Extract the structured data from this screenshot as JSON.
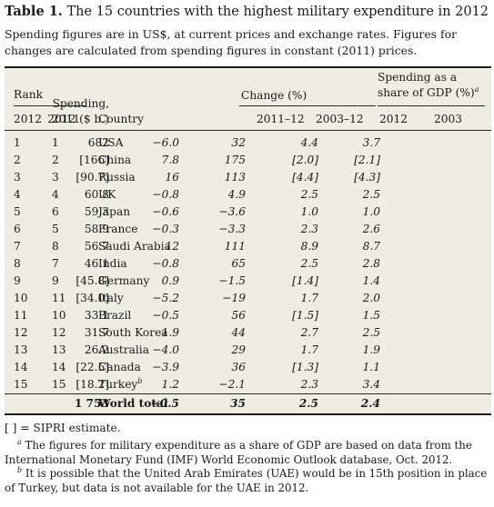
{
  "title": {
    "label": "Table 1.",
    "text": "The 15 countries with the highest military expenditure in 2012"
  },
  "subtitle": "Spending figures are in US$, at current prices and exchange rates. Figures for changes are calculated from spending figures in constant (2011) prices.",
  "headers": {
    "rank": "Rank",
    "year_2012": "2012",
    "year_2011": "2011",
    "country": "Country",
    "spending_line1": "Spending,",
    "spending_line2": "2012 ($ b.)",
    "change": "Change (%)",
    "change_2011_12": "2011–12",
    "change_2003_12": "2003–12",
    "gdp_line1": "Spending as a",
    "gdp_line2": "share of GDP (%)",
    "gdp_note": "a",
    "gdp_2012": "2012",
    "gdp_2003": "2003"
  },
  "rows": [
    {
      "rank_2012": "1",
      "rank_2011": "1",
      "country": "USA",
      "note": "",
      "spending": "682",
      "change_1yr": "−6.0",
      "change_9yr": "32",
      "gdp_2012": "4.4",
      "gdp_2003": "3.7"
    },
    {
      "rank_2012": "2",
      "rank_2011": "2",
      "country": "China",
      "note": "",
      "spending": "[166]",
      "change_1yr": "7.8",
      "change_9yr": "175",
      "gdp_2012": "[2.0]",
      "gdp_2003": "[2.1]"
    },
    {
      "rank_2012": "3",
      "rank_2011": "3",
      "country": "Russia",
      "note": "",
      "spending": "[90.7]",
      "change_1yr": "16",
      "change_9yr": "113",
      "gdp_2012": "[4.4]",
      "gdp_2003": "[4.3]"
    },
    {
      "rank_2012": "4",
      "rank_2011": "4",
      "country": "UK",
      "note": "",
      "spending": "60.8",
      "change_1yr": "−0.8",
      "change_9yr": "4.9",
      "gdp_2012": "2.5",
      "gdp_2003": "2.5"
    },
    {
      "rank_2012": "5",
      "rank_2011": "6",
      "country": "Japan",
      "note": "",
      "spending": "59.3",
      "change_1yr": "−0.6",
      "change_9yr": "−3.6",
      "gdp_2012": "1.0",
      "gdp_2003": "1.0"
    },
    {
      "rank_2012": "6",
      "rank_2011": "5",
      "country": "France",
      "note": "",
      "spending": "58.9",
      "change_1yr": "−0.3",
      "change_9yr": "−3.3",
      "gdp_2012": "2.3",
      "gdp_2003": "2.6"
    },
    {
      "rank_2012": "7",
      "rank_2011": "8",
      "country": "Saudi Arabia",
      "note": "",
      "spending": "56.7",
      "change_1yr": "12",
      "change_9yr": "111",
      "gdp_2012": "8.9",
      "gdp_2003": "8.7"
    },
    {
      "rank_2012": "8",
      "rank_2011": "7",
      "country": "India",
      "note": "",
      "spending": "46.1",
      "change_1yr": "−0.8",
      "change_9yr": "65",
      "gdp_2012": "2.5",
      "gdp_2003": "2.8"
    },
    {
      "rank_2012": "9",
      "rank_2011": "9",
      "country": "Germany",
      "note": "",
      "spending": "[45.8]",
      "change_1yr": "0.9",
      "change_9yr": "−1.5",
      "gdp_2012": "[1.4]",
      "gdp_2003": "1.4"
    },
    {
      "rank_2012": "10",
      "rank_2011": "11",
      "country": "Italy",
      "note": "",
      "spending": "[34.0]",
      "change_1yr": "−5.2",
      "change_9yr": "−19",
      "gdp_2012": "1.7",
      "gdp_2003": "2.0"
    },
    {
      "rank_2012": "11",
      "rank_2011": "10",
      "country": "Brazil",
      "note": "",
      "spending": "33.1",
      "change_1yr": "−0.5",
      "change_9yr": "56",
      "gdp_2012": "[1.5]",
      "gdp_2003": "1.5"
    },
    {
      "rank_2012": "12",
      "rank_2011": "12",
      "country": "South Korea",
      "note": "",
      "spending": "31.7",
      "change_1yr": "1.9",
      "change_9yr": "44",
      "gdp_2012": "2.7",
      "gdp_2003": "2.5"
    },
    {
      "rank_2012": "13",
      "rank_2011": "13",
      "country": "Australia",
      "note": "",
      "spending": "26.2",
      "change_1yr": "−4.0",
      "change_9yr": "29",
      "gdp_2012": "1.7",
      "gdp_2003": "1.9"
    },
    {
      "rank_2012": "14",
      "rank_2011": "14",
      "country": "Canada",
      "note": "",
      "spending": "[22.5]",
      "change_1yr": "−3.9",
      "change_9yr": "36",
      "gdp_2012": "[1.3]",
      "gdp_2003": "1.1"
    },
    {
      "rank_2012": "15",
      "rank_2011": "15",
      "country": "Turkey",
      "note": "b",
      "spending": "[18.2]",
      "change_1yr": "1.2",
      "change_9yr": "−2.1",
      "gdp_2012": "2.3",
      "gdp_2003": "3.4"
    }
  ],
  "total": {
    "label": "World total",
    "spending": "1 753",
    "change_1yr": "−0.5",
    "change_9yr": "35",
    "gdp_2012": "2.5",
    "gdp_2003": "2.4"
  },
  "notes": {
    "legend": "[ ] = SIPRI estimate.",
    "footnote_a_mark": "a",
    "footnote_a": "The figures for military expenditure as a share of GDP are based on data from the International Monetary Fund (IMF) World Economic Outlook database, Oct. 2012.",
    "footnote_b_mark": "b",
    "footnote_b": "It is possible that the United Arab Emirates (UAE) would be in 15th position in place of Turkey, but data is not available for the UAE in 2012."
  }
}
